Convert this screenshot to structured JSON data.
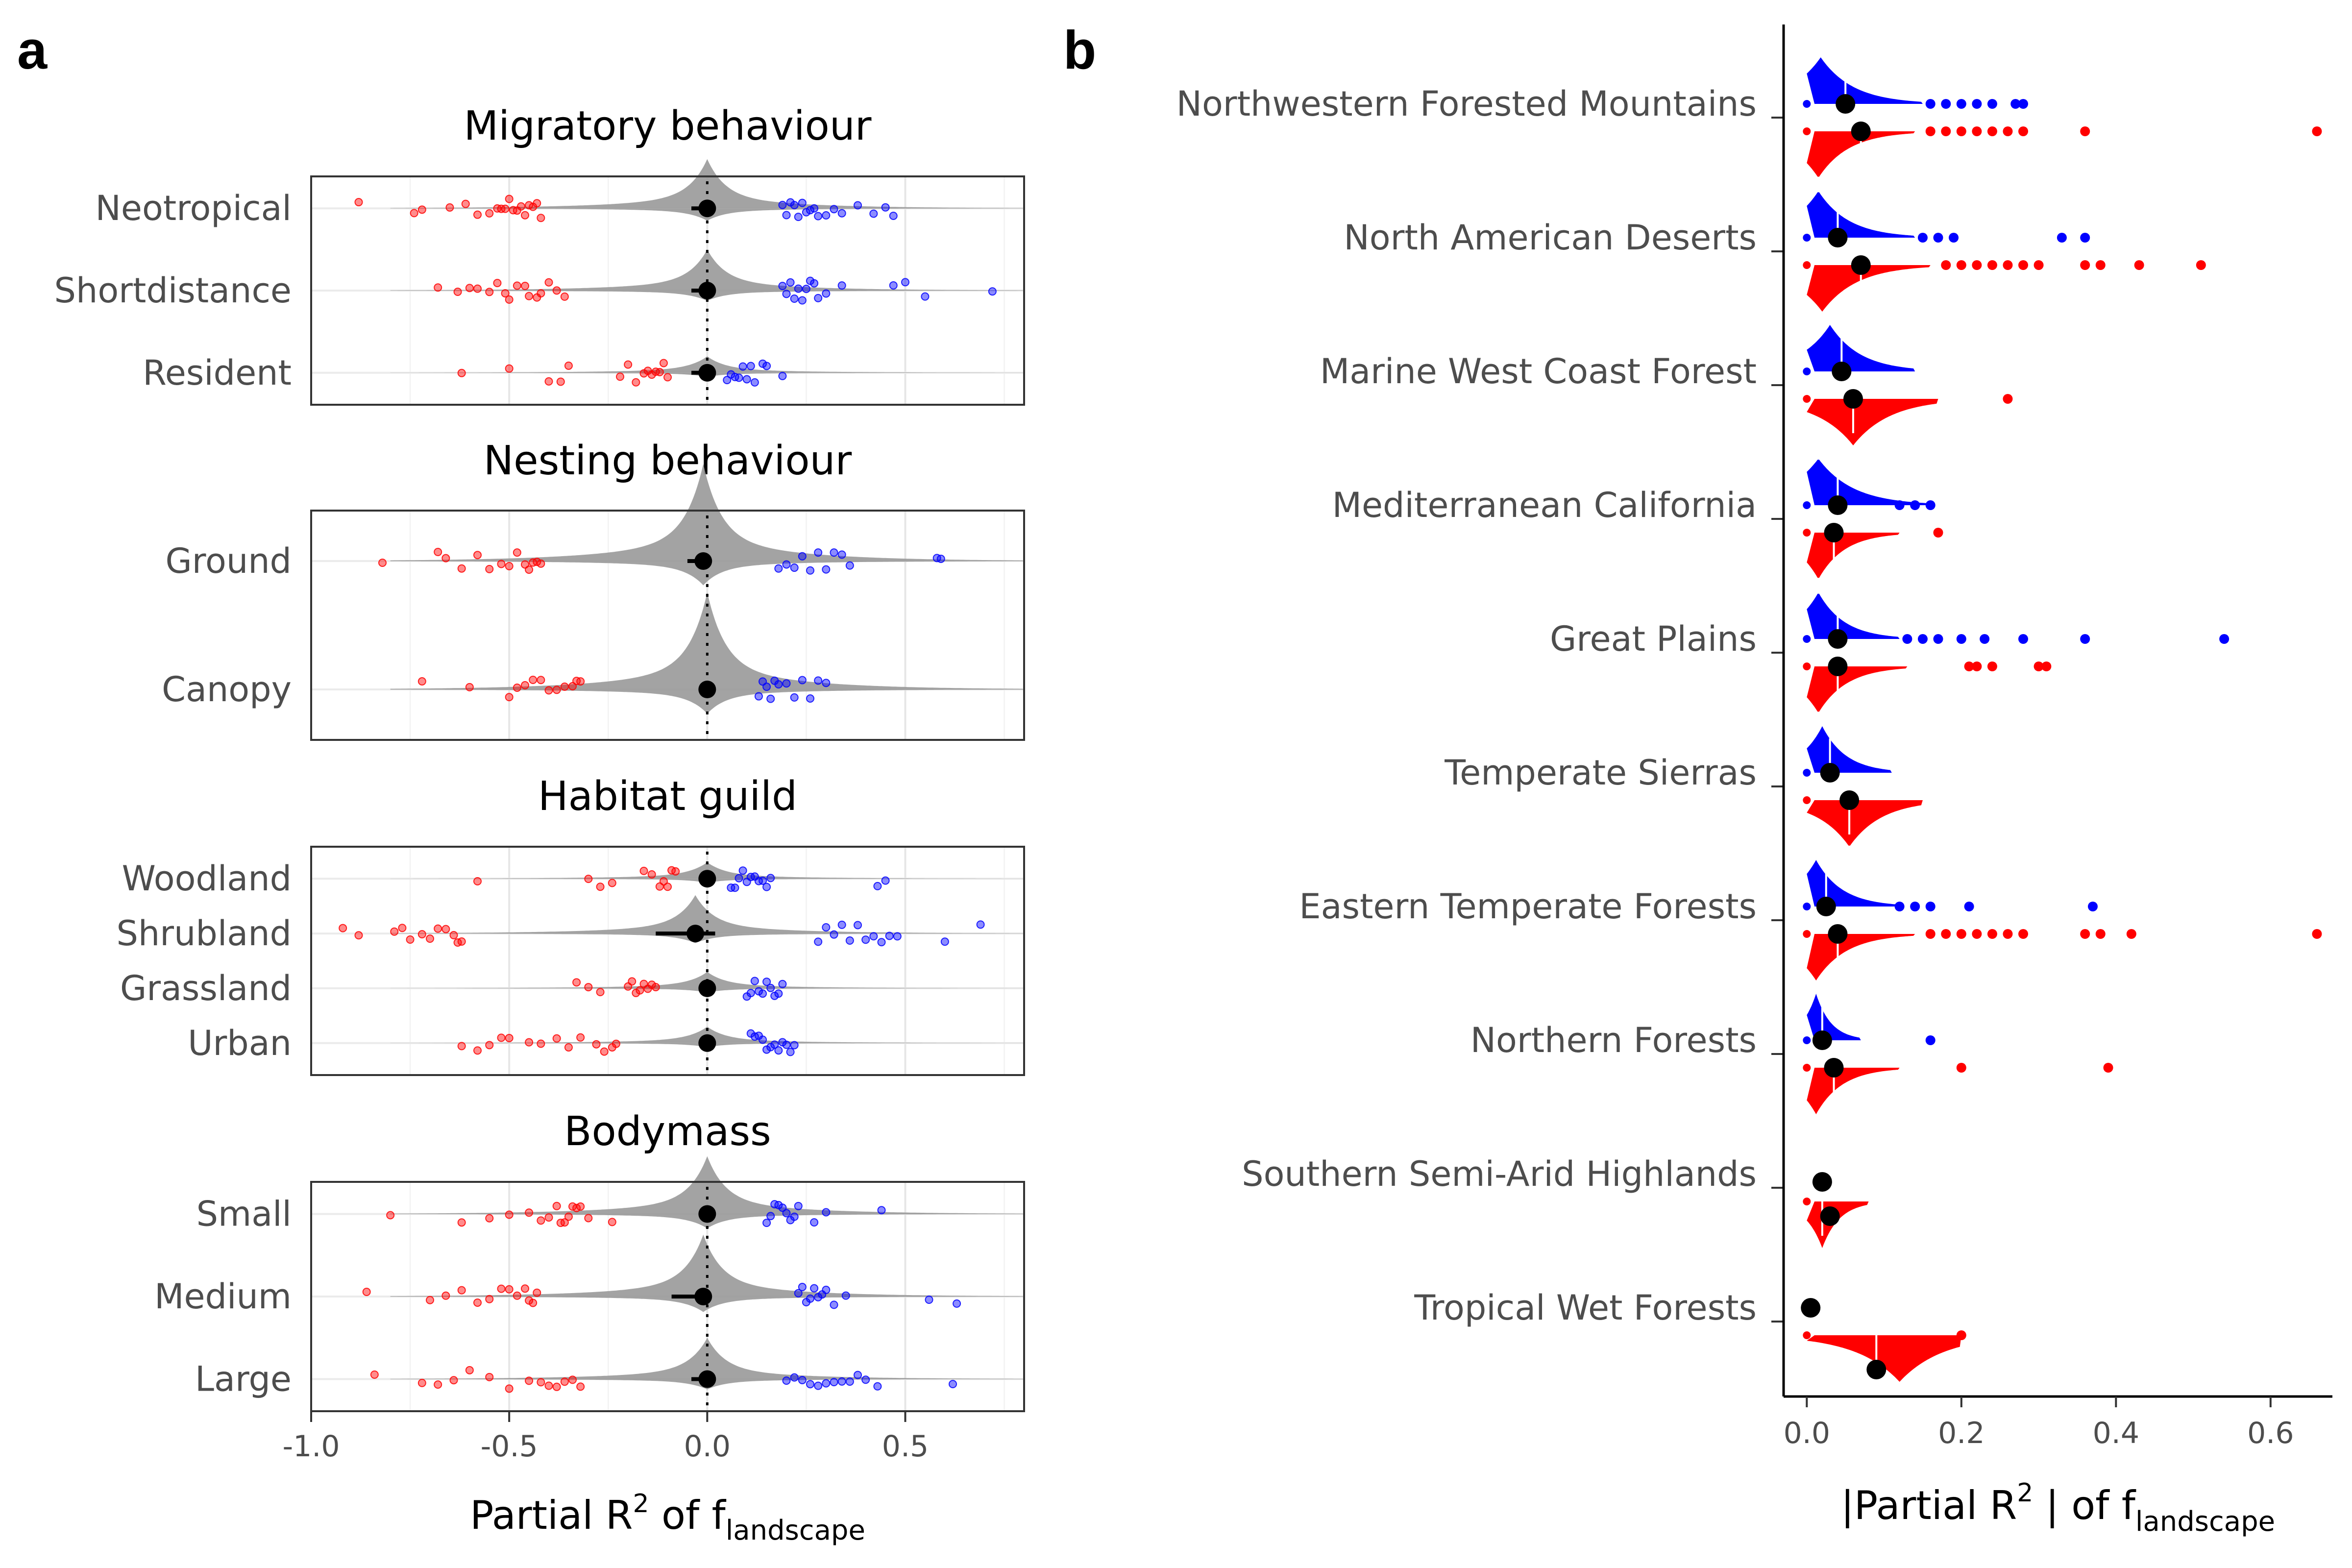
{
  "chart_data": [
    {
      "panel": "a",
      "type": "violin",
      "xlabel": "Partial R",
      "xlabel_sup": "2",
      "xlabel_mid": " of f",
      "xlabel_sub": "landscape",
      "xlim": [
        -1.0,
        0.8
      ],
      "xticks": [
        -1.0,
        -0.5,
        0.0,
        0.5
      ],
      "xtick_labels": [
        "-1.0",
        "-0.5",
        "0.0",
        "0.5"
      ],
      "grid": true,
      "colors": {
        "negative": "#ff0000",
        "positive": "#0000ff",
        "violin": "#999999",
        "point": "#000000"
      },
      "facets": [
        {
          "title": "Migratory behaviour",
          "groups": [
            {
              "label": "Neotropical",
              "median": 0.0,
              "ci": [
                -0.04,
                0.01
              ],
              "violin_peak": 0.6,
              "neg": [
                -0.88,
                -0.74,
                -0.72,
                -0.65,
                -0.61,
                -0.58,
                -0.55,
                -0.53,
                -0.52,
                -0.51,
                -0.5,
                -0.49,
                -0.48,
                -0.47,
                -0.46,
                -0.45,
                -0.44,
                -0.43,
                -0.42
              ],
              "pos": [
                0.19,
                0.2,
                0.21,
                0.22,
                0.23,
                0.24,
                0.25,
                0.26,
                0.27,
                0.28,
                0.3,
                0.32,
                0.34,
                0.38,
                0.42,
                0.45,
                0.47
              ]
            },
            {
              "label": "Shortdistance",
              "median": 0.0,
              "ci": [
                -0.04,
                0.01
              ],
              "violin_peak": 0.5,
              "neg": [
                -0.68,
                -0.63,
                -0.6,
                -0.58,
                -0.55,
                -0.53,
                -0.51,
                -0.5,
                -0.48,
                -0.46,
                -0.45,
                -0.43,
                -0.42,
                -0.4,
                -0.38,
                -0.36
              ],
              "pos": [
                0.19,
                0.2,
                0.21,
                0.22,
                0.23,
                0.24,
                0.25,
                0.26,
                0.27,
                0.28,
                0.3,
                0.34,
                0.47,
                0.5,
                0.55,
                0.72
              ]
            },
            {
              "label": "Resident",
              "median": 0.0,
              "ci": [
                -0.04,
                0.01
              ],
              "violin_peak": 0.2,
              "neg": [
                -0.62,
                -0.5,
                -0.4,
                -0.37,
                -0.35,
                -0.22,
                -0.2,
                -0.18,
                -0.16,
                -0.15,
                -0.14,
                -0.13,
                -0.12,
                -0.11,
                -0.1
              ],
              "pos": [
                0.05,
                0.06,
                0.07,
                0.08,
                0.09,
                0.1,
                0.11,
                0.12,
                0.14,
                0.15,
                0.19
              ]
            }
          ]
        },
        {
          "title": "Nesting behaviour",
          "groups": [
            {
              "label": "Ground",
              "median": -0.01,
              "ci": [
                -0.05,
                0.0
              ],
              "violin_peak": 0.9,
              "neg": [
                -0.82,
                -0.68,
                -0.66,
                -0.62,
                -0.58,
                -0.55,
                -0.52,
                -0.5,
                -0.48,
                -0.46,
                -0.45,
                -0.44,
                -0.43,
                -0.42
              ],
              "pos": [
                0.18,
                0.2,
                0.22,
                0.24,
                0.26,
                0.28,
                0.3,
                0.32,
                0.34,
                0.36,
                0.58,
                0.59
              ]
            },
            {
              "label": "Canopy",
              "median": 0.0,
              "ci": [
                -0.01,
                0.01
              ],
              "violin_peak": 0.9,
              "neg": [
                -0.72,
                -0.6,
                -0.5,
                -0.48,
                -0.46,
                -0.44,
                -0.42,
                -0.4,
                -0.38,
                -0.36,
                -0.34,
                -0.33,
                -0.32
              ],
              "pos": [
                0.13,
                0.14,
                0.15,
                0.16,
                0.17,
                0.18,
                0.2,
                0.22,
                0.24,
                0.26,
                0.28,
                0.3
              ]
            }
          ]
        },
        {
          "title": "Habitat guild",
          "groups": [
            {
              "label": "Woodland",
              "median": 0.0,
              "ci": [
                -0.01,
                0.01
              ],
              "violin_peak": 0.3,
              "neg": [
                -0.58,
                -0.3,
                -0.27,
                -0.24,
                -0.16,
                -0.14,
                -0.12,
                -0.11,
                -0.1,
                -0.09,
                -0.08
              ],
              "pos": [
                0.06,
                0.07,
                0.08,
                0.09,
                0.1,
                0.11,
                0.12,
                0.13,
                0.14,
                0.15,
                0.16,
                0.43,
                0.45
              ]
            },
            {
              "label": "Shrubland",
              "median": -0.03,
              "ci": [
                -0.13,
                0.02
              ],
              "violin_peak": 0.7,
              "neg": [
                -0.92,
                -0.88,
                -0.79,
                -0.77,
                -0.75,
                -0.72,
                -0.7,
                -0.68,
                -0.66,
                -0.64,
                -0.63,
                -0.62
              ],
              "pos": [
                0.28,
                0.3,
                0.32,
                0.34,
                0.36,
                0.38,
                0.4,
                0.42,
                0.44,
                0.46,
                0.48,
                0.6,
                0.69
              ]
            },
            {
              "label": "Grassland",
              "median": 0.0,
              "ci": [
                -0.01,
                0.01
              ],
              "violin_peak": 0.3,
              "neg": [
                -0.33,
                -0.3,
                -0.27,
                -0.2,
                -0.19,
                -0.18,
                -0.17,
                -0.16,
                -0.15,
                -0.14,
                -0.13
              ],
              "pos": [
                0.1,
                0.11,
                0.12,
                0.13,
                0.14,
                0.15,
                0.16,
                0.17,
                0.18,
                0.19
              ]
            },
            {
              "label": "Urban",
              "median": 0.0,
              "ci": [
                -0.01,
                0.01
              ],
              "violin_peak": 0.3,
              "neg": [
                -0.62,
                -0.58,
                -0.55,
                -0.52,
                -0.5,
                -0.45,
                -0.42,
                -0.38,
                -0.35,
                -0.32,
                -0.28,
                -0.26,
                -0.24,
                -0.23
              ],
              "pos": [
                0.11,
                0.12,
                0.13,
                0.14,
                0.15,
                0.16,
                0.17,
                0.18,
                0.19,
                0.2,
                0.21,
                0.22
              ]
            }
          ]
        },
        {
          "title": "Bodymass",
          "groups": [
            {
              "label": "Small",
              "median": 0.0,
              "ci": [
                -0.01,
                0.01
              ],
              "violin_peak": 0.7,
              "neg": [
                -0.8,
                -0.62,
                -0.55,
                -0.5,
                -0.45,
                -0.42,
                -0.4,
                -0.38,
                -0.37,
                -0.36,
                -0.35,
                -0.34,
                -0.33,
                -0.32,
                -0.3,
                -0.24
              ],
              "pos": [
                0.15,
                0.16,
                0.17,
                0.18,
                0.19,
                0.2,
                0.21,
                0.22,
                0.23,
                0.27,
                0.3,
                0.44
              ]
            },
            {
              "label": "Medium",
              "median": -0.01,
              "ci": [
                -0.09,
                0.0
              ],
              "violin_peak": 0.75,
              "neg": [
                -0.86,
                -0.7,
                -0.66,
                -0.62,
                -0.58,
                -0.55,
                -0.52,
                -0.5,
                -0.48,
                -0.46,
                -0.45,
                -0.44,
                -0.43
              ],
              "pos": [
                0.23,
                0.24,
                0.25,
                0.26,
                0.27,
                0.28,
                0.29,
                0.3,
                0.32,
                0.35,
                0.56,
                0.63
              ]
            },
            {
              "label": "Large",
              "median": 0.0,
              "ci": [
                -0.04,
                0.01
              ],
              "violin_peak": 0.5,
              "neg": [
                -0.84,
                -0.72,
                -0.68,
                -0.64,
                -0.6,
                -0.55,
                -0.5,
                -0.45,
                -0.42,
                -0.4,
                -0.38,
                -0.36,
                -0.34,
                -0.32
              ],
              "pos": [
                0.2,
                0.22,
                0.24,
                0.26,
                0.28,
                0.3,
                0.32,
                0.34,
                0.36,
                0.38,
                0.4,
                0.43,
                0.62
              ]
            }
          ]
        }
      ]
    },
    {
      "panel": "b",
      "type": "violin",
      "xlabel_pre": "|Partial R",
      "xlabel_sup": "2",
      "xlabel_mid": " | of f",
      "xlabel_sub": "landscape",
      "xlim": [
        -0.03,
        0.68
      ],
      "xticks": [
        0.0,
        0.2,
        0.4,
        0.6
      ],
      "xtick_labels": [
        "0.0",
        "0.2",
        "0.4",
        "0.6"
      ],
      "grid": false,
      "colors": {
        "positive": "#0000ff",
        "negative": "#ff0000",
        "point": "#000000"
      },
      "regions": [
        {
          "label": "Northwestern Forested Mountains",
          "blue": {
            "mean": 0.05,
            "violin_max": 0.15,
            "violin_peak": 0.018,
            "outliers": [
              0.16,
              0.18,
              0.2,
              0.22,
              0.24,
              0.27,
              0.28
            ]
          },
          "red": {
            "mean": 0.07,
            "violin_max": 0.14,
            "violin_peak": 0.015,
            "outliers": [
              0.16,
              0.18,
              0.2,
              0.22,
              0.24,
              0.26,
              0.28,
              0.36,
              0.66
            ]
          }
        },
        {
          "label": "North American Deserts",
          "blue": {
            "mean": 0.04,
            "violin_max": 0.14,
            "violin_peak": 0.015,
            "outliers": [
              0.15,
              0.17,
              0.19,
              0.33,
              0.36
            ]
          },
          "red": {
            "mean": 0.07,
            "violin_max": 0.16,
            "violin_peak": 0.02,
            "outliers": [
              0.18,
              0.2,
              0.22,
              0.24,
              0.26,
              0.28,
              0.3,
              0.36,
              0.38,
              0.43,
              0.51
            ]
          }
        },
        {
          "label": "Marine West Coast Forest",
          "blue": {
            "mean": 0.045,
            "violin_max": 0.14,
            "violin_peak": 0.03,
            "outliers": []
          },
          "red": {
            "mean": 0.06,
            "violin_max": 0.17,
            "violin_peak": 0.06,
            "outliers": [
              0.26
            ]
          }
        },
        {
          "label": "Mediterranean California",
          "blue": {
            "mean": 0.04,
            "violin_max": 0.16,
            "violin_peak": 0.015,
            "outliers": [
              0.12,
              0.14,
              0.16
            ]
          },
          "red": {
            "mean": 0.035,
            "violin_max": 0.12,
            "violin_peak": 0.015,
            "outliers": [
              0.17
            ]
          }
        },
        {
          "label": "Great Plains",
          "blue": {
            "mean": 0.04,
            "violin_max": 0.12,
            "violin_peak": 0.015,
            "outliers": [
              0.13,
              0.15,
              0.17,
              0.2,
              0.23,
              0.28,
              0.36,
              0.54
            ]
          },
          "red": {
            "mean": 0.04,
            "violin_max": 0.13,
            "violin_peak": 0.015,
            "outliers": [
              0.21,
              0.22,
              0.24,
              0.3,
              0.31
            ]
          }
        },
        {
          "label": "Temperate Sierras",
          "blue": {
            "mean": 0.03,
            "violin_max": 0.11,
            "violin_peak": 0.02,
            "outliers": []
          },
          "red": {
            "mean": 0.055,
            "violin_max": 0.15,
            "violin_peak": 0.055,
            "outliers": []
          }
        },
        {
          "label": "Eastern Temperate Forests",
          "blue": {
            "mean": 0.025,
            "violin_max": 0.12,
            "violin_peak": 0.012,
            "outliers": [
              0.12,
              0.14,
              0.16,
              0.21,
              0.37
            ]
          },
          "red": {
            "mean": 0.04,
            "violin_max": 0.14,
            "violin_peak": 0.012,
            "outliers": [
              0.16,
              0.18,
              0.2,
              0.22,
              0.24,
              0.26,
              0.28,
              0.36,
              0.38,
              0.42,
              0.66
            ]
          }
        },
        {
          "label": "Northern Forests",
          "blue": {
            "mean": 0.02,
            "violin_max": 0.07,
            "violin_peak": 0.012,
            "outliers": [
              0.16
            ]
          },
          "red": {
            "mean": 0.035,
            "violin_max": 0.12,
            "violin_peak": 0.012,
            "outliers": [
              0.2,
              0.39
            ]
          }
        },
        {
          "label": "Southern Semi-Arid Highlands",
          "blue": null,
          "red": {
            "mean": 0.02,
            "violin_max": 0.08,
            "violin_peak": 0.02,
            "outliers": [],
            "mean2": 0.03
          }
        },
        {
          "label": "Tropical Wet Forests",
          "blue": {
            "mean": 0.005,
            "violin_max": null,
            "violin_peak": null,
            "outliers": []
          },
          "red": {
            "mean": 0.09,
            "violin_max": 0.2,
            "violin_peak": 0.12,
            "outliers": [
              0.2
            ]
          }
        }
      ]
    }
  ],
  "labels": {
    "panel_a": "a",
    "panel_b": "b"
  }
}
